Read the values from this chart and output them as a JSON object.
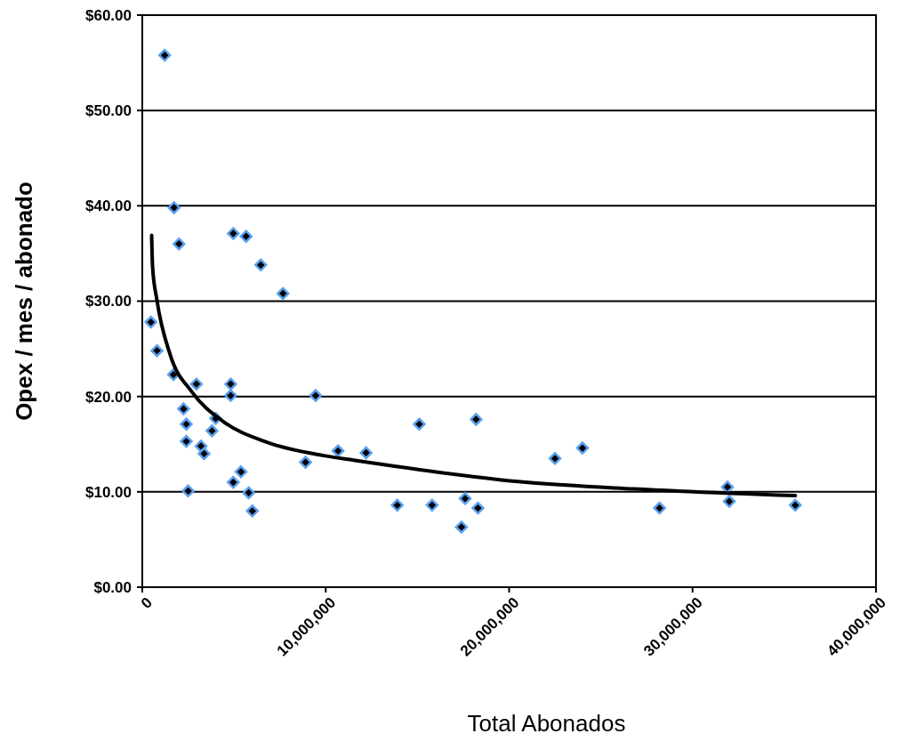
{
  "chart_data": {
    "type": "scatter",
    "xlabel": "Total Abonados",
    "ylabel": "Opex / mes / abonado",
    "xlim": [
      0,
      40000000
    ],
    "xticks": [
      0,
      {
        "value": 10000000,
        "label": "10,000,000"
      },
      {
        "value": 20000000,
        "label": "20,000,000"
      },
      {
        "value": 30000000,
        "label": "30,000,000"
      },
      {
        "value": 40000000,
        "label": "40,000,000"
      }
    ],
    "ylim": [
      0,
      60
    ],
    "yticks": [
      {
        "value": 0,
        "label": "$0.00"
      },
      {
        "value": 10,
        "label": "$10.00"
      },
      {
        "value": 20,
        "label": "$20.00"
      },
      {
        "value": 30,
        "label": "$30.00"
      },
      {
        "value": 40,
        "label": "$40.00"
      },
      {
        "value": 50,
        "label": "$50.00"
      },
      {
        "value": 60,
        "label": "$60.00"
      }
    ],
    "grid": "y",
    "marker": "diamond",
    "series": [
      {
        "color": "#000000",
        "x": [
          1220000,
          470000,
          800000,
          1730000,
          2000000,
          1700000,
          2950000,
          2250000,
          2400000,
          2400000,
          2500000,
          3200000,
          3370000,
          3800000,
          4000000,
          4960000,
          5660000,
          6460000,
          7670000,
          4820000,
          4820000,
          4960000,
          5380000,
          5800000,
          6000000,
          9450000,
          8900000,
          10670000,
          12200000,
          13900000,
          15100000,
          15800000,
          17600000,
          17400000,
          18200000,
          18300000,
          22500000,
          24000000,
          28200000,
          31900000,
          32000000,
          35600000
        ],
        "values": [
          55.8,
          27.8,
          24.8,
          39.8,
          36.0,
          22.3,
          21.3,
          18.7,
          17.1,
          15.3,
          10.1,
          14.8,
          14.0,
          16.4,
          17.7,
          37.1,
          36.8,
          33.8,
          30.8,
          21.3,
          20.1,
          11.0,
          12.1,
          9.9,
          8.0,
          20.1,
          13.1,
          14.3,
          14.1,
          8.6,
          17.1,
          8.6,
          9.3,
          6.3,
          17.6,
          8.3,
          13.5,
          14.6,
          8.3,
          10.5,
          9.0,
          8.6
        ]
      },
      {
        "type": "line",
        "color": "#000000",
        "line_style": "solid",
        "marker": "none",
        "x": [
          510000,
          560000,
          800000,
          1500000,
          2700000,
          4400000,
          6800000,
          9900000,
          11600000,
          20900000,
          26800000,
          35600000
        ],
        "values": [
          36.9,
          33.6,
          30.1,
          24.5,
          20.5,
          17.4,
          15.2,
          13.8,
          13.3,
          11.0,
          10.3,
          9.6
        ]
      }
    ]
  }
}
